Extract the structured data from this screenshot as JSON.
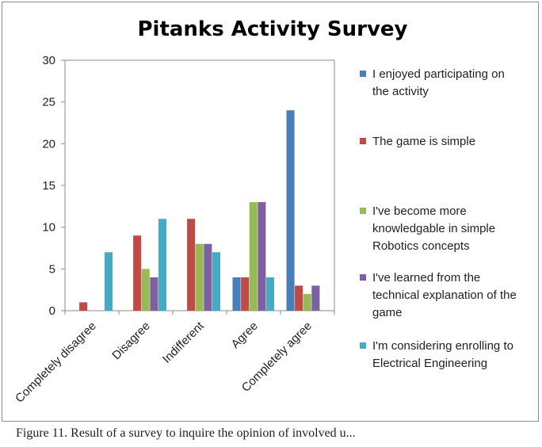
{
  "chart_data": {
    "type": "bar",
    "title": "Pitanks Activity Survey",
    "categories": [
      "Completely disagree",
      "Disagree",
      "Indifferent",
      "Agree",
      "Completely agree"
    ],
    "ylim": [
      0,
      30
    ],
    "yticks": [
      0,
      5,
      10,
      15,
      20,
      25,
      30
    ],
    "grid": "none",
    "legend_position": "right",
    "series": [
      {
        "name": "I enjoyed participating on the activity",
        "legend_lines": [
          "I enjoyed participating on",
          "the activity"
        ],
        "color": "#4a7ebb",
        "values": [
          0,
          0,
          0,
          4,
          24
        ]
      },
      {
        "name": "The game is simple",
        "legend_lines": [
          "The game is simple"
        ],
        "color": "#be4b48",
        "values": [
          1,
          9,
          11,
          4,
          3
        ]
      },
      {
        "name": "I've become more knowledgable in simple Robotics concepts",
        "legend_lines": [
          "I've become  more",
          "knowledgable in simple",
          "Robotics concepts"
        ],
        "color": "#98b954",
        "values": [
          0,
          5,
          8,
          13,
          2
        ]
      },
      {
        "name": "I've learned from the technical explanation of the game",
        "legend_lines": [
          "I've learned from the",
          "technical explanation of the",
          "game"
        ],
        "color": "#7d60a0",
        "values": [
          0,
          4,
          8,
          13,
          3
        ]
      },
      {
        "name": "I'm considering enrolling to Electrical Engineering",
        "legend_lines": [
          "I'm considering enrolling to",
          "Electrical Engineering"
        ],
        "color": "#46aac5",
        "values": [
          7,
          11,
          7,
          4,
          0
        ]
      }
    ]
  },
  "caption": "Figure 11.  Result of a survey to inquire the opinion  of involved u..."
}
